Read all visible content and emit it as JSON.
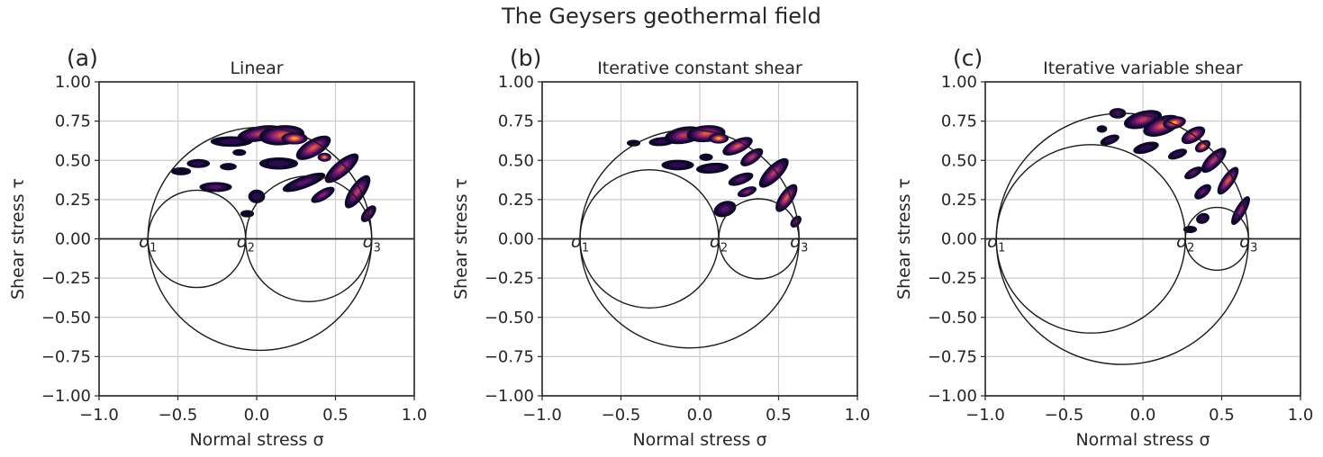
{
  "suptitle": "The Geysers geothermal field",
  "colors": {
    "grid": "#cccccc",
    "axis": "#262626",
    "circle": "#1a1a1a",
    "density": [
      "#0d0829",
      "#2b0a4d",
      "#5a1266",
      "#8a226a",
      "#b73959",
      "#e0583a",
      "#f68a1c",
      "#fbb61a"
    ]
  },
  "chart_data": [
    {
      "type": "mohr-circle-density",
      "panel_label": "(a)",
      "title": "Linear",
      "xlabel": "Normal stress σ",
      "ylabel": "Shear stress τ",
      "xlim": [
        -1.0,
        1.0
      ],
      "ylim": [
        -1.0,
        1.0
      ],
      "xticks": [
        "−1.0",
        "−0.5",
        "0.0",
        "0.5",
        "1.0"
      ],
      "yticks": [
        "1.00",
        "0.75",
        "0.50",
        "0.25",
        "0.00",
        "−0.25",
        "−0.50",
        "−0.75",
        "−1.00"
      ],
      "grid": true,
      "principal_stresses": [
        {
          "label": "σ",
          "sub": "1",
          "value": -0.69
        },
        {
          "label": "σ",
          "sub": "2",
          "value": -0.07
        },
        {
          "label": "σ",
          "sub": "3",
          "value": 0.73
        }
      ],
      "density_blobs": [
        {
          "x": 0.02,
          "y": 0.67,
          "rx": 0.14,
          "ry": 0.045,
          "rot": -10,
          "level": 4
        },
        {
          "x": 0.16,
          "y": 0.66,
          "rx": 0.14,
          "ry": 0.06,
          "rot": -5,
          "level": 5
        },
        {
          "x": 0.24,
          "y": 0.64,
          "rx": 0.08,
          "ry": 0.035,
          "rot": 0,
          "level": 7
        },
        {
          "x": 0.36,
          "y": 0.58,
          "rx": 0.12,
          "ry": 0.05,
          "rot": -30,
          "level": 5
        },
        {
          "x": 0.43,
          "y": 0.52,
          "rx": 0.04,
          "ry": 0.025,
          "rot": 0,
          "level": 6
        },
        {
          "x": 0.54,
          "y": 0.45,
          "rx": 0.13,
          "ry": 0.045,
          "rot": -40,
          "level": 4
        },
        {
          "x": 0.64,
          "y": 0.3,
          "rx": 0.12,
          "ry": 0.045,
          "rot": -55,
          "level": 4
        },
        {
          "x": 0.71,
          "y": 0.16,
          "rx": 0.06,
          "ry": 0.03,
          "rot": -50,
          "level": 3
        },
        {
          "x": -0.16,
          "y": 0.62,
          "rx": 0.13,
          "ry": 0.03,
          "rot": 0,
          "level": 1
        },
        {
          "x": -0.18,
          "y": 0.46,
          "rx": 0.05,
          "ry": 0.02,
          "rot": 0,
          "level": 0
        },
        {
          "x": -0.11,
          "y": 0.55,
          "rx": 0.04,
          "ry": 0.018,
          "rot": 0,
          "level": 0
        },
        {
          "x": -0.37,
          "y": 0.48,
          "rx": 0.07,
          "ry": 0.025,
          "rot": 0,
          "level": 1
        },
        {
          "x": -0.26,
          "y": 0.33,
          "rx": 0.1,
          "ry": 0.028,
          "rot": 0,
          "level": 2
        },
        {
          "x": -0.48,
          "y": 0.43,
          "rx": 0.06,
          "ry": 0.022,
          "rot": 0,
          "level": 0
        },
        {
          "x": 0.0,
          "y": 0.27,
          "rx": 0.05,
          "ry": 0.04,
          "rot": 0,
          "level": 1
        },
        {
          "x": -0.06,
          "y": 0.16,
          "rx": 0.04,
          "ry": 0.02,
          "rot": 0,
          "level": 0
        },
        {
          "x": 0.3,
          "y": 0.36,
          "rx": 0.14,
          "ry": 0.035,
          "rot": -20,
          "level": 2
        },
        {
          "x": 0.42,
          "y": 0.28,
          "rx": 0.08,
          "ry": 0.03,
          "rot": -30,
          "level": 3
        },
        {
          "x": 0.14,
          "y": 0.48,
          "rx": 0.12,
          "ry": 0.035,
          "rot": 0,
          "level": 1
        }
      ]
    },
    {
      "type": "mohr-circle-density",
      "panel_label": "(b)",
      "title": "Iterative constant shear",
      "xlabel": "Normal stress σ",
      "ylabel": "Shear stress τ",
      "xlim": [
        -1.0,
        1.0
      ],
      "ylim": [
        -1.0,
        1.0
      ],
      "xticks": [
        "−1.0",
        "−0.5",
        "0.0",
        "0.5",
        "1.0"
      ],
      "yticks": [
        "1.00",
        "0.75",
        "0.50",
        "0.25",
        "0.00",
        "−0.25",
        "−0.50",
        "−0.75",
        "−1.00"
      ],
      "grid": true,
      "principal_stresses": [
        {
          "label": "σ",
          "sub": "1",
          "value": -0.76
        },
        {
          "label": "σ",
          "sub": "2",
          "value": 0.12
        },
        {
          "label": "σ",
          "sub": "3",
          "value": 0.63
        }
      ],
      "density_blobs": [
        {
          "x": -0.1,
          "y": 0.66,
          "rx": 0.12,
          "ry": 0.05,
          "rot": -10,
          "level": 4
        },
        {
          "x": 0.04,
          "y": 0.67,
          "rx": 0.12,
          "ry": 0.05,
          "rot": -5,
          "level": 5
        },
        {
          "x": 0.12,
          "y": 0.64,
          "rx": 0.06,
          "ry": 0.03,
          "rot": 0,
          "level": 7
        },
        {
          "x": 0.24,
          "y": 0.59,
          "rx": 0.1,
          "ry": 0.04,
          "rot": -25,
          "level": 5
        },
        {
          "x": 0.33,
          "y": 0.52,
          "rx": 0.08,
          "ry": 0.035,
          "rot": -35,
          "level": 4
        },
        {
          "x": 0.47,
          "y": 0.42,
          "rx": 0.12,
          "ry": 0.045,
          "rot": -45,
          "level": 4
        },
        {
          "x": 0.55,
          "y": 0.26,
          "rx": 0.1,
          "ry": 0.04,
          "rot": -55,
          "level": 5
        },
        {
          "x": 0.61,
          "y": 0.11,
          "rx": 0.04,
          "ry": 0.025,
          "rot": -50,
          "level": 3
        },
        {
          "x": -0.24,
          "y": 0.62,
          "rx": 0.08,
          "ry": 0.025,
          "rot": -5,
          "level": 1
        },
        {
          "x": -0.42,
          "y": 0.61,
          "rx": 0.04,
          "ry": 0.018,
          "rot": 0,
          "level": 0
        },
        {
          "x": -0.14,
          "y": 0.47,
          "rx": 0.1,
          "ry": 0.03,
          "rot": 0,
          "level": 1
        },
        {
          "x": 0.08,
          "y": 0.45,
          "rx": 0.1,
          "ry": 0.03,
          "rot": -5,
          "level": 1
        },
        {
          "x": 0.26,
          "y": 0.38,
          "rx": 0.08,
          "ry": 0.03,
          "rot": -20,
          "level": 2
        },
        {
          "x": 0.3,
          "y": 0.3,
          "rx": 0.06,
          "ry": 0.025,
          "rot": -20,
          "level": 3
        },
        {
          "x": 0.16,
          "y": 0.19,
          "rx": 0.07,
          "ry": 0.045,
          "rot": -20,
          "level": 2
        },
        {
          "x": 0.04,
          "y": 0.52,
          "rx": 0.04,
          "ry": 0.02,
          "rot": 0,
          "level": 0
        }
      ]
    },
    {
      "type": "mohr-circle-density",
      "panel_label": "(c)",
      "title": "Iterative variable shear",
      "xlabel": "Normal stress σ",
      "ylabel": "Shear stress τ",
      "xlim": [
        -1.0,
        1.0
      ],
      "ylim": [
        -1.0,
        1.0
      ],
      "xticks": [
        "−1.0",
        "−0.5",
        "0.0",
        "0.5",
        "1.0"
      ],
      "yticks": [
        "1.00",
        "0.75",
        "0.50",
        "0.25",
        "0.00",
        "−0.25",
        "−0.50",
        "−0.75",
        "−1.00"
      ],
      "grid": true,
      "principal_stresses": [
        {
          "label": "σ",
          "sub": "1",
          "value": -0.93
        },
        {
          "label": "σ",
          "sub": "2",
          "value": 0.27
        },
        {
          "label": "σ",
          "sub": "3",
          "value": 0.67
        }
      ],
      "density_blobs": [
        {
          "x": -0.16,
          "y": 0.8,
          "rx": 0.05,
          "ry": 0.03,
          "rot": 0,
          "level": 2
        },
        {
          "x": 0.0,
          "y": 0.76,
          "rx": 0.12,
          "ry": 0.05,
          "rot": -15,
          "level": 4
        },
        {
          "x": 0.12,
          "y": 0.72,
          "rx": 0.12,
          "ry": 0.055,
          "rot": -20,
          "level": 5
        },
        {
          "x": 0.2,
          "y": 0.74,
          "rx": 0.07,
          "ry": 0.035,
          "rot": -10,
          "level": 7
        },
        {
          "x": 0.32,
          "y": 0.66,
          "rx": 0.08,
          "ry": 0.04,
          "rot": -30,
          "level": 5
        },
        {
          "x": 0.38,
          "y": 0.59,
          "rx": 0.05,
          "ry": 0.03,
          "rot": -30,
          "level": 6
        },
        {
          "x": 0.45,
          "y": 0.5,
          "rx": 0.1,
          "ry": 0.04,
          "rot": -45,
          "level": 4
        },
        {
          "x": 0.54,
          "y": 0.37,
          "rx": 0.1,
          "ry": 0.035,
          "rot": -55,
          "level": 5
        },
        {
          "x": 0.62,
          "y": 0.18,
          "rx": 0.1,
          "ry": 0.03,
          "rot": -60,
          "level": 3
        },
        {
          "x": -0.26,
          "y": 0.7,
          "rx": 0.03,
          "ry": 0.02,
          "rot": 0,
          "level": 0
        },
        {
          "x": -0.21,
          "y": 0.63,
          "rx": 0.06,
          "ry": 0.025,
          "rot": -20,
          "level": 1
        },
        {
          "x": 0.02,
          "y": 0.58,
          "rx": 0.08,
          "ry": 0.03,
          "rot": -15,
          "level": 1
        },
        {
          "x": 0.22,
          "y": 0.54,
          "rx": 0.06,
          "ry": 0.025,
          "rot": -20,
          "level": 1
        },
        {
          "x": 0.32,
          "y": 0.42,
          "rx": 0.06,
          "ry": 0.025,
          "rot": -30,
          "level": 2
        },
        {
          "x": 0.38,
          "y": 0.3,
          "rx": 0.06,
          "ry": 0.03,
          "rot": -40,
          "level": 2
        },
        {
          "x": 0.38,
          "y": 0.13,
          "rx": 0.04,
          "ry": 0.03,
          "rot": -20,
          "level": 1
        },
        {
          "x": 0.3,
          "y": 0.06,
          "rx": 0.04,
          "ry": 0.02,
          "rot": 0,
          "level": 0
        }
      ]
    }
  ]
}
